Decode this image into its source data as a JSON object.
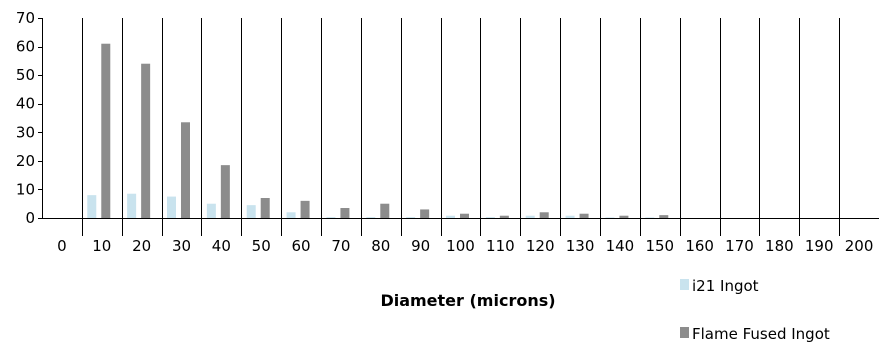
{
  "chart_data": {
    "type": "bar",
    "categories": [
      "0",
      "10",
      "20",
      "30",
      "40",
      "50",
      "60",
      "70",
      "80",
      "90",
      "100",
      "110",
      "120",
      "130",
      "140",
      "150",
      "160",
      "170",
      "180",
      "190",
      "200"
    ],
    "series": [
      {
        "name": "i21 Ingot",
        "color": "#c9e3ee",
        "values": [
          0,
          8,
          8.5,
          7.5,
          5,
          4.5,
          2,
          0.3,
          0.3,
          0.3,
          0.8,
          0.3,
          0.8,
          0.8,
          0.2,
          0.2,
          0,
          0,
          0,
          0,
          0
        ]
      },
      {
        "name": "Flame Fused Ingot",
        "color": "#8c8c8c",
        "values": [
          0,
          61,
          54,
          33.5,
          18.5,
          7,
          6,
          3.5,
          5,
          3,
          1.5,
          0.8,
          2,
          1.5,
          0.8,
          1,
          0,
          0,
          0,
          0,
          0
        ]
      }
    ],
    "xlabel": "Diameter (microns)",
    "ylabel": "",
    "ylim": [
      0,
      70
    ],
    "yticks": [
      0,
      10,
      20,
      30,
      40,
      50,
      60,
      70
    ],
    "grid": "vertical",
    "legend_position": "bottom-right"
  }
}
